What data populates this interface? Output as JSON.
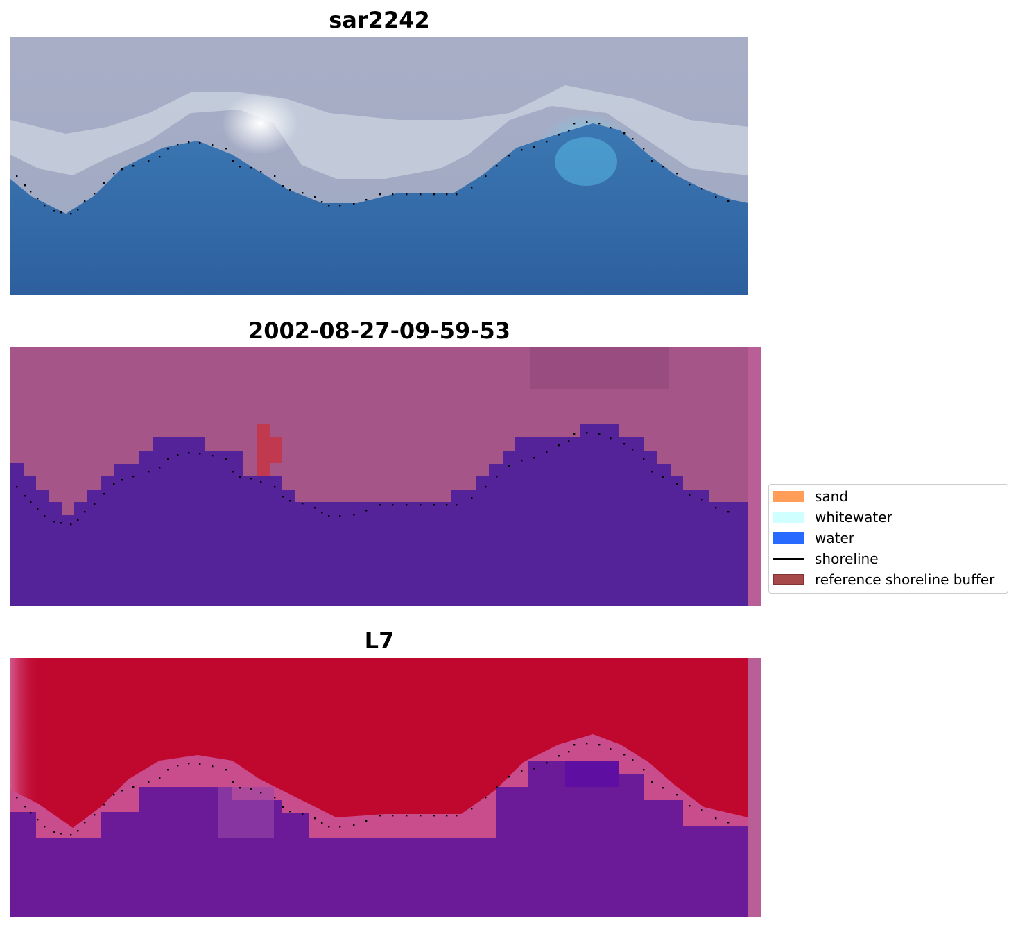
{
  "panels": [
    {
      "title": "sar2242"
    },
    {
      "title": "2002-08-27-09-59-53"
    },
    {
      "title": "L7"
    }
  ],
  "legend": {
    "items": [
      {
        "label": "sand",
        "color": "#ff8c3c",
        "kind": "patch"
      },
      {
        "label": "whitewater",
        "color": "#c8ffff",
        "kind": "patch"
      },
      {
        "label": "water",
        "color": "#0050ff",
        "kind": "patch"
      },
      {
        "label": "shoreline",
        "color": "#000000",
        "kind": "line"
      },
      {
        "label": "reference shoreline buffer",
        "color": "#9a2a2a",
        "kind": "patch"
      }
    ]
  },
  "colors": {
    "rgb_sky": "#a7aec4",
    "rgb_water": "#2f6aa8",
    "classified_land": "#a65588",
    "classified_water": "#54239a",
    "classified_buffer": "#c0394f",
    "mndwi_land": "#c0082f",
    "mndwi_water": "#6b1a98",
    "strip": "#b95e96"
  }
}
